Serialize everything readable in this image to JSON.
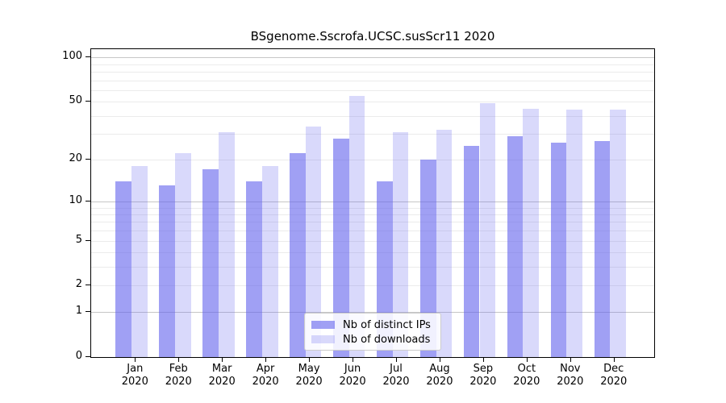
{
  "figure": {
    "title": "BSgenome.Sscrofa.UCSC.susScr11 2020"
  },
  "chart_data": {
    "type": "bar",
    "title": "BSgenome.Sscrofa.UCSC.susScr11 2020",
    "categories": [
      "Jan",
      "Feb",
      "Mar",
      "Apr",
      "May",
      "Jun",
      "Jul",
      "Aug",
      "Sep",
      "Oct",
      "Nov",
      "Dec"
    ],
    "x_year_label": "2020",
    "series": [
      {
        "name": "Nb of distinct IPs",
        "color": "rgba(102,102,238,0.62)",
        "color_hex_on_white": "#a6a6f2",
        "values": [
          14,
          13,
          17,
          14,
          22,
          28,
          14,
          20,
          25,
          29,
          26,
          27
        ]
      },
      {
        "name": "Nb of downloads",
        "color": "rgba(102,102,238,0.25)",
        "color_hex_on_white": "#d9d9f8",
        "values": [
          18,
          22,
          31,
          18,
          34,
          55,
          31,
          32,
          49,
          45,
          44,
          44
        ]
      }
    ],
    "yaxis": {
      "scale": "log10(1+value)",
      "tick_values": [
        100,
        50,
        20,
        10,
        5,
        2,
        1,
        0
      ],
      "tick_labels": [
        "100",
        "50",
        "20",
        "10",
        "5",
        "2",
        "1",
        "0"
      ],
      "ylim": [
        0,
        114
      ],
      "major_grid_values": [
        1,
        10,
        100
      ],
      "minor_grid_values": [
        2,
        3,
        4,
        5,
        6,
        7,
        8,
        9,
        20,
        30,
        40,
        50,
        60,
        70,
        80,
        90
      ]
    },
    "legend": {
      "entries": [
        "Nb of distinct IPs",
        "Nb of downloads"
      ],
      "position": "bottom-center-inside"
    },
    "grid": "on"
  },
  "colors": {
    "major_grid": "#c6c6c6",
    "minor_grid": "#ebebeb",
    "spine": "#000000",
    "background": "#ffffff",
    "bar_base": "#6666ee"
  }
}
